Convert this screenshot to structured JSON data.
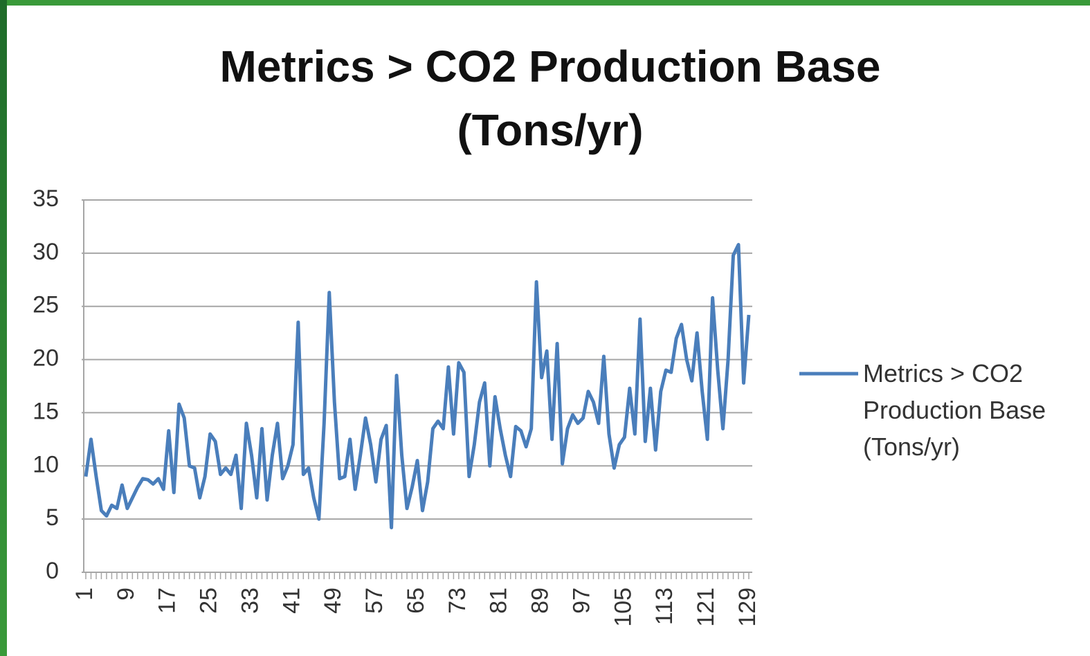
{
  "chart_data": {
    "type": "line",
    "title": "Metrics > CO2 Production Base (Tons/yr)",
    "categories": [
      1,
      null,
      null,
      null,
      null,
      null,
      null,
      null,
      9,
      null,
      null,
      null,
      null,
      null,
      null,
      null,
      17,
      null,
      null,
      null,
      null,
      null,
      null,
      null,
      25,
      null,
      null,
      null,
      null,
      null,
      null,
      null,
      33,
      null,
      null,
      null,
      null,
      null,
      null,
      null,
      41,
      null,
      null,
      null,
      null,
      null,
      null,
      null,
      49,
      null,
      null,
      null,
      null,
      null,
      null,
      null,
      57,
      null,
      null,
      null,
      null,
      null,
      null,
      null,
      65,
      null,
      null,
      null,
      null,
      null,
      null,
      null,
      73,
      null,
      null,
      null,
      null,
      null,
      null,
      null,
      81,
      null,
      null,
      null,
      null,
      null,
      null,
      null,
      89,
      null,
      null,
      null,
      null,
      null,
      null,
      null,
      97,
      null,
      null,
      null,
      null,
      null,
      null,
      null,
      105,
      null,
      null,
      null,
      null,
      null,
      null,
      null,
      113,
      null,
      null,
      null,
      null,
      null,
      null,
      null,
      121,
      null,
      null,
      null,
      null,
      null,
      null,
      null,
      129
    ],
    "series": [
      {
        "name": "Metrics > CO2 Production Base (Tons/yr)",
        "color": "#4a7ebb",
        "values": [
          9,
          12.5,
          9,
          5.8,
          5.3,
          6.3,
          6,
          8.2,
          6,
          7,
          8,
          8.8,
          8.7,
          8.3,
          8.8,
          7.8,
          13.3,
          7.5,
          15.8,
          14.5,
          10,
          9.8,
          7,
          9,
          13,
          12.3,
          9.2,
          9.8,
          9.2,
          11,
          6,
          14,
          11,
          7,
          13.5,
          6.8,
          11,
          14,
          8.8,
          10,
          12,
          23.5,
          9.2,
          9.8,
          7,
          5,
          14,
          26.3,
          16,
          8.8,
          9,
          12.5,
          7.8,
          11,
          14.5,
          12,
          8.5,
          12.5,
          13.8,
          4.2,
          18.5,
          11,
          6,
          8,
          10.5,
          5.8,
          8.5,
          13.5,
          14.2,
          13.5,
          19.3,
          13,
          19.7,
          18.8,
          9,
          12,
          16,
          17.8,
          10,
          16.5,
          13.5,
          11,
          9,
          13.7,
          13.3,
          11.8,
          13.5,
          27.3,
          18.3,
          20.8,
          12.5,
          21.5,
          10.2,
          13.5,
          14.8,
          14,
          14.5,
          17,
          16,
          14,
          20.3,
          13,
          9.8,
          12,
          12.7,
          17.3,
          13,
          23.8,
          12.3,
          17.3,
          11.5,
          17,
          19,
          18.8,
          22,
          23.3,
          20,
          18,
          22.5,
          17,
          12.5,
          25.8,
          19,
          13.5,
          20,
          29.8,
          30.8,
          17.8,
          24.2
        ]
      }
    ],
    "ylim": [
      0,
      35
    ],
    "yticks": [
      0,
      5,
      10,
      15,
      20,
      25,
      30,
      35
    ],
    "grid": true,
    "legend": "right"
  }
}
